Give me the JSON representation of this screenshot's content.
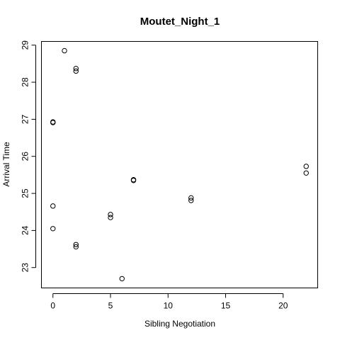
{
  "chart_data": {
    "type": "scatter",
    "title": "Moutet_Night_1",
    "xlabel": "Sibling Negotiation",
    "ylabel": "Arrival Time",
    "xlim": [
      -1,
      23
    ],
    "ylim": [
      22.45,
      29.1
    ],
    "xticks": [
      0,
      5,
      10,
      15,
      20
    ],
    "yticks": [
      23,
      24,
      25,
      26,
      27,
      28,
      29
    ],
    "grid": false,
    "points": [
      {
        "x": 1,
        "y": 28.85
      },
      {
        "x": 2,
        "y": 28.37
      },
      {
        "x": 2,
        "y": 28.3
      },
      {
        "x": 0,
        "y": 26.93
      },
      {
        "x": 0,
        "y": 26.91
      },
      {
        "x": 0,
        "y": 24.66
      },
      {
        "x": 0,
        "y": 24.05
      },
      {
        "x": 2,
        "y": 23.62
      },
      {
        "x": 2,
        "y": 23.56
      },
      {
        "x": 5,
        "y": 24.43
      },
      {
        "x": 5,
        "y": 24.35
      },
      {
        "x": 6,
        "y": 22.7
      },
      {
        "x": 7,
        "y": 25.37
      },
      {
        "x": 7,
        "y": 25.35
      },
      {
        "x": 12,
        "y": 24.88
      },
      {
        "x": 12,
        "y": 24.81
      },
      {
        "x": 22,
        "y": 25.73
      },
      {
        "x": 22,
        "y": 25.55
      }
    ]
  }
}
